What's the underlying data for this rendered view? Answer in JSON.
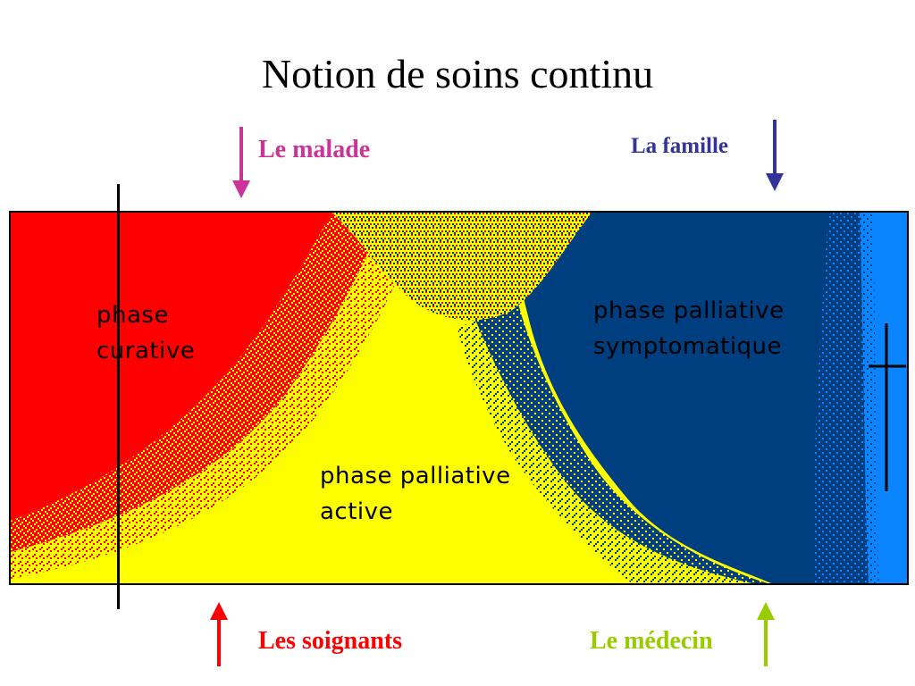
{
  "title": "Notion de soins continu",
  "actors": {
    "top_left": "Le malade",
    "top_right": "La famille",
    "bottom_left": "Les soignants",
    "bottom_right": "Le médecin"
  },
  "phases": {
    "curative": "phase\ncurative",
    "active": "phase palliative\nactive",
    "symptomatique": "phase palliative\nsymptomatique"
  },
  "colors": {
    "malade": "#cc3399",
    "famille": "#333399",
    "soignants": "#ff0000",
    "medecin": "#99cc00",
    "curative": "#ff0000",
    "active": "#ffff00",
    "symptomatique": "#003f7f",
    "end_zone": "#0a84ff"
  },
  "icons": {
    "cross": "cross-icon"
  }
}
